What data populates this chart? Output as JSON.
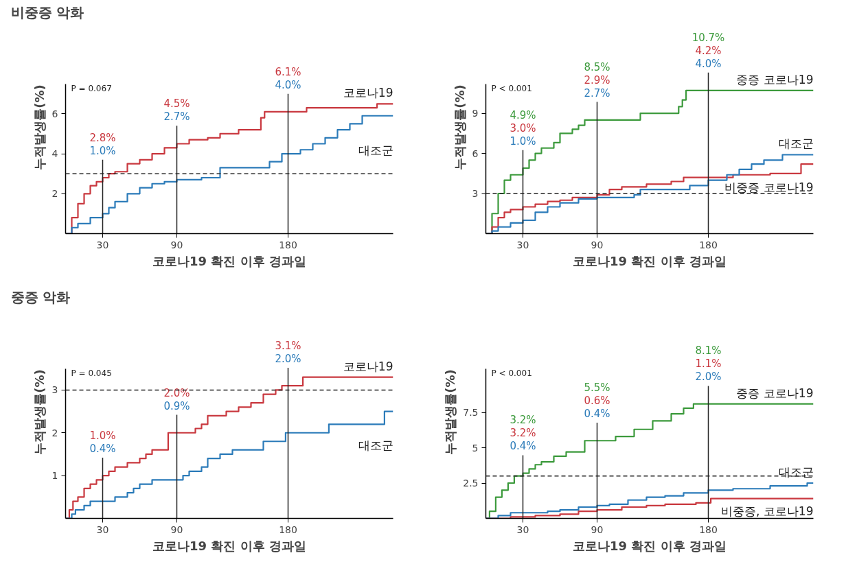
{
  "chart_data": [
    {
      "type": "step",
      "title": "비중증 악화",
      "xlabel": "코로나19 확진 이후 경과일",
      "ylabel": "누적발생률(%)",
      "xlim": [
        0,
        265
      ],
      "xticks": [
        30,
        90,
        180
      ],
      "ylim": [
        0,
        7.5
      ],
      "yticks": [
        2,
        4,
        6
      ],
      "series": [
        {
          "name": "코로나19",
          "color": "#c9383f",
          "x": [
            0,
            5,
            10,
            15,
            20,
            25,
            30,
            35,
            40,
            50,
            60,
            70,
            80,
            90,
            100,
            115,
            125,
            140,
            158,
            161,
            195,
            252,
            265
          ],
          "values": [
            0,
            0.8,
            1.5,
            2.0,
            2.4,
            2.6,
            2.8,
            3.0,
            3.1,
            3.5,
            3.7,
            4.0,
            4.3,
            4.5,
            4.7,
            4.8,
            5.0,
            5.2,
            5.8,
            6.1,
            6.3,
            6.5,
            6.5
          ]
        },
        {
          "name": "대조군",
          "color": "#2b7bb9",
          "x": [
            0,
            5,
            10,
            20,
            30,
            35,
            40,
            50,
            60,
            70,
            80,
            90,
            110,
            125,
            155,
            165,
            175,
            190,
            200,
            210,
            220,
            230,
            240,
            265
          ],
          "values": [
            0,
            0.3,
            0.5,
            0.8,
            1.0,
            1.3,
            1.6,
            2.0,
            2.3,
            2.5,
            2.6,
            2.7,
            2.8,
            3.3,
            3.3,
            3.6,
            4.0,
            4.2,
            4.5,
            4.8,
            5.2,
            5.5,
            5.9,
            5.9
          ]
        }
      ],
      "annotations": [
        "P = 0.067",
        "2.8%",
        "1.0%",
        "4.5%",
        "2.7%",
        "6.1%",
        "4.0%"
      ],
      "ref_lines": [
        {
          "axis": "x",
          "value": 30
        },
        {
          "axis": "x",
          "value": 90
        },
        {
          "axis": "x",
          "value": 180
        },
        {
          "axis": "y",
          "value": 3,
          "line_style": "dashed"
        }
      ]
    },
    {
      "type": "step",
      "xlabel": "코로나19 확진 이후 경과일",
      "ylabel": "누적발생률(%)",
      "xlim": [
        0,
        265
      ],
      "xticks": [
        30,
        90,
        180
      ],
      "ylim": [
        0,
        11.2
      ],
      "yticks": [
        3,
        6,
        9
      ],
      "series": [
        {
          "name": "중증 코로나19",
          "color": "#3c9a3c",
          "x": [
            0,
            5,
            10,
            15,
            20,
            30,
            35,
            40,
            45,
            55,
            60,
            70,
            75,
            80,
            125,
            156,
            159,
            162,
            265
          ],
          "values": [
            0,
            1.5,
            3.0,
            4.0,
            4.4,
            4.9,
            5.5,
            6.0,
            6.4,
            6.8,
            7.5,
            7.8,
            8.1,
            8.5,
            9.0,
            9.5,
            10.0,
            10.7,
            10.7
          ]
        },
        {
          "name": "비중증 코로나19",
          "color": "#c9383f",
          "x": [
            0,
            5,
            10,
            15,
            20,
            30,
            40,
            50,
            60,
            70,
            90,
            100,
            110,
            130,
            150,
            160,
            200,
            230,
            255,
            265
          ],
          "values": [
            0,
            0.5,
            1.2,
            1.6,
            1.8,
            2.0,
            2.2,
            2.4,
            2.5,
            2.7,
            2.9,
            3.3,
            3.5,
            3.7,
            3.9,
            4.2,
            4.4,
            4.5,
            5.2,
            5.2
          ]
        },
        {
          "name": "대조군",
          "color": "#2b7bb9",
          "x": [
            0,
            5,
            10,
            20,
            30,
            40,
            50,
            60,
            75,
            90,
            120,
            125,
            150,
            165,
            180,
            195,
            205,
            215,
            225,
            240,
            265
          ],
          "values": [
            0,
            0.2,
            0.5,
            0.8,
            1.0,
            1.6,
            2.0,
            2.3,
            2.6,
            2.7,
            2.9,
            3.3,
            3.3,
            3.6,
            4.0,
            4.4,
            4.8,
            5.2,
            5.5,
            5.9,
            5.9
          ]
        }
      ],
      "annotations": [
        "P < 0.001",
        "4.9%",
        "3.0%",
        "1.0%",
        "8.5%",
        "2.9%",
        "2.7%",
        "10.7%",
        "4.2%",
        "4.0%"
      ],
      "ref_lines": [
        {
          "axis": "x",
          "value": 30
        },
        {
          "axis": "x",
          "value": 90
        },
        {
          "axis": "x",
          "value": 180
        },
        {
          "axis": "y",
          "value": 3,
          "line_style": "dashed"
        }
      ]
    },
    {
      "type": "step",
      "title": "중증 악화",
      "xlabel": "코로나19 확진 이후 경과일",
      "ylabel": "누적발생률(%)",
      "xlim": [
        0,
        265
      ],
      "xticks": [
        30,
        90,
        180
      ],
      "ylim": [
        0,
        3.5
      ],
      "yticks": [
        1,
        2,
        3
      ],
      "series": [
        {
          "name": "코로나19",
          "color": "#c9383f",
          "x": [
            0,
            3,
            6,
            10,
            15,
            20,
            25,
            30,
            35,
            40,
            50,
            60,
            65,
            70,
            83,
            105,
            110,
            115,
            130,
            140,
            150,
            160,
            170,
            175,
            192,
            265
          ],
          "values": [
            0,
            0.2,
            0.4,
            0.5,
            0.7,
            0.8,
            0.9,
            1.0,
            1.1,
            1.2,
            1.3,
            1.4,
            1.5,
            1.6,
            2.0,
            2.1,
            2.2,
            2.4,
            2.5,
            2.6,
            2.7,
            2.9,
            3.0,
            3.1,
            3.3,
            3.3
          ]
        },
        {
          "name": "대조군",
          "color": "#2b7bb9",
          "x": [
            0,
            5,
            8,
            15,
            20,
            40,
            50,
            55,
            60,
            70,
            95,
            100,
            110,
            115,
            125,
            135,
            160,
            178,
            213,
            258,
            265
          ],
          "values": [
            0,
            0.1,
            0.2,
            0.3,
            0.4,
            0.5,
            0.6,
            0.7,
            0.8,
            0.9,
            1.0,
            1.1,
            1.2,
            1.4,
            1.5,
            1.6,
            1.8,
            2.0,
            2.2,
            2.5,
            2.5
          ]
        }
      ],
      "annotations": [
        "P = 0.045",
        "1.0%",
        "0.4%",
        "2.0%",
        "0.9%",
        "3.1%",
        "2.0%"
      ],
      "ref_lines": [
        {
          "axis": "x",
          "value": 30
        },
        {
          "axis": "x",
          "value": 90
        },
        {
          "axis": "x",
          "value": 180
        },
        {
          "axis": "y",
          "value": 3,
          "line_style": "dashed"
        }
      ]
    },
    {
      "type": "step",
      "xlabel": "코로나19 확진 이후 경과일",
      "ylabel": "누적발생률(%)",
      "xlim": [
        0,
        265
      ],
      "xticks": [
        30,
        90,
        180
      ],
      "ylim": [
        0,
        10.6
      ],
      "yticks": [
        2.5,
        5,
        7.5
      ],
      "series": [
        {
          "name": "중증 코로나19",
          "color": "#3c9a3c",
          "x": [
            0,
            3,
            8,
            13,
            18,
            23,
            30,
            35,
            40,
            45,
            55,
            65,
            80,
            105,
            120,
            135,
            150,
            160,
            168,
            265
          ],
          "values": [
            0,
            0.5,
            1.5,
            2.0,
            2.5,
            3.0,
            3.2,
            3.5,
            3.8,
            4.0,
            4.4,
            4.7,
            5.5,
            5.8,
            6.3,
            6.9,
            7.4,
            7.8,
            8.1,
            8.1
          ]
        },
        {
          "name": "비중증, 코로나19",
          "color": "#c9383f",
          "x": [
            0,
            20,
            40,
            60,
            75,
            90,
            110,
            130,
            145,
            170,
            182,
            265
          ],
          "values": [
            0,
            0.1,
            0.2,
            0.3,
            0.5,
            0.6,
            0.8,
            0.9,
            1.0,
            1.1,
            1.4,
            1.4
          ]
        },
        {
          "name": "대조군",
          "color": "#2b7bb9",
          "x": [
            0,
            10,
            20,
            50,
            60,
            75,
            90,
            100,
            115,
            130,
            145,
            160,
            180,
            200,
            230,
            260,
            265
          ],
          "values": [
            0,
            0.2,
            0.4,
            0.5,
            0.6,
            0.8,
            0.9,
            1.0,
            1.3,
            1.5,
            1.6,
            1.8,
            2.0,
            2.1,
            2.3,
            2.5,
            2.5
          ]
        }
      ],
      "annotations": [
        "P < 0.001",
        "3.2%",
        "3.2%",
        "0.4%",
        "5.5%",
        "0.6%",
        "0.4%",
        "8.1%",
        "1.1%",
        "2.0%"
      ],
      "ref_lines": [
        {
          "axis": "x",
          "value": 30
        },
        {
          "axis": "x",
          "value": 90
        },
        {
          "axis": "x",
          "value": 180
        },
        {
          "axis": "y",
          "value": 3,
          "line_style": "dashed"
        }
      ]
    }
  ]
}
